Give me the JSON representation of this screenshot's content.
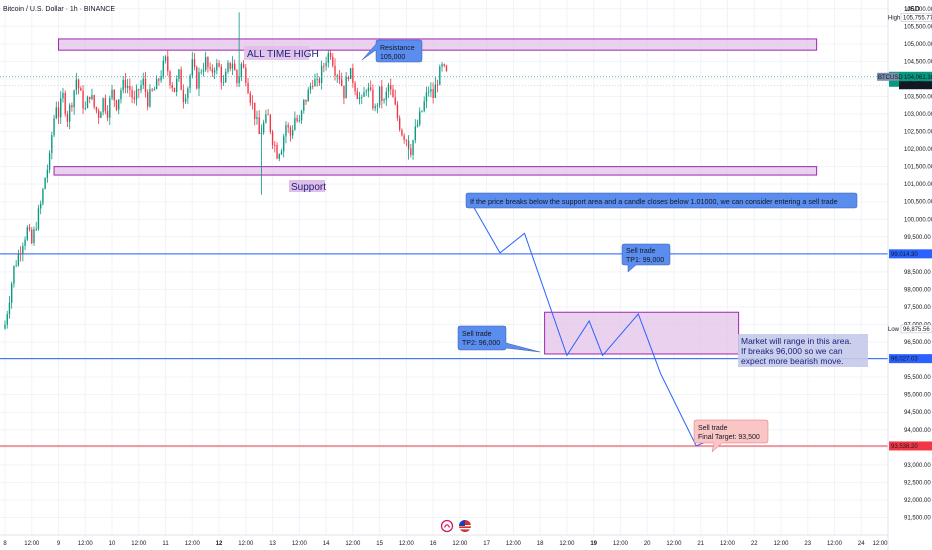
{
  "header": {
    "symbol_title": "Bitcoin / U.S. Dollar · 1h · BINANCE",
    "currency": "USD"
  },
  "chart_data": {
    "type": "candlestick",
    "title": "Bitcoin / U.S. Dollar · 1h · BINANCE",
    "ylabel": "USD",
    "ylim": [
      91000,
      106250
    ],
    "y_ticks": [
      106000,
      105500,
      105000,
      104500,
      104000,
      103500,
      103000,
      102500,
      102000,
      101500,
      101000,
      100500,
      100000,
      99500,
      99000,
      98500,
      98000,
      97500,
      97000,
      96500,
      96000,
      95500,
      95000,
      94500,
      94000,
      93500,
      93000,
      92500,
      92000,
      91500
    ],
    "y_tick_labels": [
      "106,000.00",
      "105,500.00",
      "105,000.00",
      "104,500.00",
      "104,000.00",
      "103,500.00",
      "103,000.00",
      "102,500.00",
      "102,000.00",
      "101,500.00",
      "101,000.00",
      "100,500.00",
      "100,000.00",
      "99,500.00",
      "99,000.00",
      "98,500.00",
      "98,000.00",
      "97,500.00",
      "97,000.00",
      "96,500.00",
      "96,000.00",
      "95,500.00",
      "95,000.00",
      "94,500.00",
      "94,000.00",
      "93,500.00",
      "93,000.00",
      "92,500.00",
      "92,000.00",
      "91,500.00"
    ],
    "x_ticks": [
      {
        "label": "8",
        "pos": 0
      },
      {
        "label": "12:00",
        "pos": 12
      },
      {
        "label": "9",
        "pos": 24
      },
      {
        "label": "12:00",
        "pos": 36
      },
      {
        "label": "10",
        "pos": 48
      },
      {
        "label": "12:00",
        "pos": 60
      },
      {
        "label": "11",
        "pos": 72
      },
      {
        "label": "12:00",
        "pos": 84
      },
      {
        "label": "12",
        "pos": 96,
        "bold": true
      },
      {
        "label": "12:00",
        "pos": 108
      },
      {
        "label": "13",
        "pos": 120
      },
      {
        "label": "12:00",
        "pos": 132
      },
      {
        "label": "14",
        "pos": 144
      },
      {
        "label": "12:00",
        "pos": 156
      },
      {
        "label": "15",
        "pos": 168
      },
      {
        "label": "12:00",
        "pos": 180
      },
      {
        "label": "16",
        "pos": 192
      },
      {
        "label": "12:00",
        "pos": 204
      },
      {
        "label": "17",
        "pos": 216
      },
      {
        "label": "12:00",
        "pos": 228
      },
      {
        "label": "18",
        "pos": 240
      },
      {
        "label": "12:00",
        "pos": 252
      },
      {
        "label": "19",
        "pos": 264,
        "bold": true
      },
      {
        "label": "12:00",
        "pos": 276
      },
      {
        "label": "20",
        "pos": 288
      },
      {
        "label": "12:00",
        "pos": 300
      },
      {
        "label": "21",
        "pos": 312
      },
      {
        "label": "12:00",
        "pos": 324
      },
      {
        "label": "22",
        "pos": 336
      },
      {
        "label": "12:00",
        "pos": 348
      },
      {
        "label": "23",
        "pos": 360
      },
      {
        "label": "12:00",
        "pos": 372
      },
      {
        "label": "24",
        "pos": 384
      },
      {
        "label": "12:00",
        "pos": 396
      }
    ],
    "x_range": [
      0,
      396
    ],
    "price_path": [
      [
        0,
        97000
      ],
      [
        2,
        97800
      ],
      [
        4,
        98600
      ],
      [
        6,
        99000
      ],
      [
        8,
        99400
      ],
      [
        10,
        99700
      ],
      [
        12,
        99300
      ],
      [
        14,
        99900
      ],
      [
        16,
        100400
      ],
      [
        18,
        101200
      ],
      [
        20,
        101700
      ],
      [
        21,
        102400
      ],
      [
        22,
        102900
      ],
      [
        23,
        103300
      ],
      [
        24,
        103000
      ],
      [
        26,
        103500
      ],
      [
        28,
        102900
      ],
      [
        30,
        103400
      ],
      [
        32,
        104000
      ],
      [
        34,
        103500
      ],
      [
        36,
        103100
      ],
      [
        38,
        103600
      ],
      [
        40,
        103200
      ],
      [
        42,
        103000
      ],
      [
        44,
        103400
      ],
      [
        46,
        103100
      ],
      [
        48,
        103600
      ],
      [
        50,
        103300
      ],
      [
        52,
        103700
      ],
      [
        54,
        103900
      ],
      [
        56,
        103700
      ],
      [
        58,
        103300
      ],
      [
        60,
        103700
      ],
      [
        62,
        103900
      ],
      [
        64,
        103400
      ],
      [
        66,
        103600
      ],
      [
        68,
        103800
      ],
      [
        70,
        104200
      ],
      [
        72,
        104500
      ],
      [
        74,
        104000
      ],
      [
        76,
        103700
      ],
      [
        78,
        104100
      ],
      [
        80,
        103500
      ],
      [
        82,
        103800
      ],
      [
        84,
        104400
      ],
      [
        86,
        103900
      ],
      [
        88,
        104300
      ],
      [
        90,
        104500
      ],
      [
        92,
        104100
      ],
      [
        94,
        104400
      ],
      [
        96,
        104300
      ],
      [
        98,
        103800
      ],
      [
        100,
        104300
      ],
      [
        102,
        104500
      ],
      [
        104,
        103900
      ],
      [
        106,
        104400
      ],
      [
        108,
        104100
      ],
      [
        110,
        103500
      ],
      [
        112,
        103000
      ],
      [
        114,
        102400
      ],
      [
        116,
        102700
      ],
      [
        118,
        102900
      ],
      [
        120,
        102300
      ],
      [
        122,
        101900
      ],
      [
        124,
        102100
      ],
      [
        126,
        102700
      ],
      [
        128,
        102400
      ],
      [
        130,
        102900
      ],
      [
        132,
        102700
      ],
      [
        134,
        103300
      ],
      [
        136,
        103600
      ],
      [
        138,
        104000
      ],
      [
        140,
        103800
      ],
      [
        142,
        104200
      ],
      [
        144,
        104600
      ],
      [
        146,
        104800
      ],
      [
        148,
        104300
      ],
      [
        150,
        104100
      ],
      [
        152,
        103600
      ],
      [
        154,
        104200
      ],
      [
        156,
        104000
      ],
      [
        158,
        103600
      ],
      [
        160,
        103300
      ],
      [
        162,
        103800
      ],
      [
        164,
        103500
      ],
      [
        166,
        103100
      ],
      [
        168,
        103600
      ],
      [
        170,
        103300
      ],
      [
        172,
        103800
      ],
      [
        174,
        103400
      ],
      [
        176,
        102900
      ],
      [
        178,
        102500
      ],
      [
        180,
        102300
      ],
      [
        182,
        102000
      ],
      [
        184,
        102500
      ],
      [
        186,
        102900
      ],
      [
        188,
        103300
      ],
      [
        190,
        103700
      ],
      [
        192,
        103500
      ],
      [
        194,
        104000
      ],
      [
        196,
        104300
      ],
      [
        198,
        104100
      ]
    ],
    "special_wicks": [
      {
        "pos": 105,
        "low": 103800,
        "high": 105900
      },
      {
        "pos": 115,
        "low": 100700,
        "high": 102700
      },
      {
        "pos": 181,
        "low": 101700,
        "high": 102400
      }
    ],
    "zones": [
      {
        "name": "resistance-zone",
        "x0": 24,
        "x1": 364,
        "y0": 104820,
        "y1": 105140
      },
      {
        "name": "support-zone",
        "x0": 22,
        "x1": 364,
        "y0": 101260,
        "y1": 101500
      },
      {
        "name": "range-zone",
        "x0": 242,
        "x1": 329,
        "y0": 96160,
        "y1": 97350
      }
    ],
    "horizontal_lines": [
      {
        "name": "tp1-line",
        "value": 99014.3,
        "color": "#2962ff",
        "label": "99,014.30"
      },
      {
        "name": "tp2-line",
        "value": 96027.03,
        "color": "#2962ff",
        "label": "96,027.03"
      },
      {
        "name": "final-target-line",
        "value": 93538.2,
        "color": "#f23645",
        "label": "93,538.20"
      }
    ],
    "projection_path": [
      [
        207,
        100700
      ],
      [
        222,
        99040
      ],
      [
        233,
        99600
      ],
      [
        252,
        96120
      ],
      [
        262,
        97100
      ],
      [
        268,
        96120
      ],
      [
        284,
        97300
      ],
      [
        294,
        95600
      ],
      [
        310,
        93540
      ],
      [
        320,
        93800
      ]
    ],
    "last_price": {
      "value": 104061.38,
      "label": "104,061.38",
      "countdown": "42:47",
      "tag": "BTCUSD"
    },
    "prev_close": {
      "value": 103820.17,
      "label": "103,820.17"
    },
    "high": {
      "value": 105755.77,
      "label": "105,755.77",
      "tag": "High"
    },
    "low": {
      "value": 96875.56,
      "label": "96,875.56",
      "tag": "Low"
    },
    "annotations": {
      "all_time_high": "ALL TIME HIGH",
      "resistance": [
        "Resistance",
        "105,000"
      ],
      "support": "Support",
      "breakdown_note": "If the price breaks below the support area and a candle closes below 1.01000, we can consider entering a sell trade",
      "sell_trade_1": [
        "Sell trade",
        "TP1: 99,000"
      ],
      "sell_trade_2": [
        "Sell trade",
        "TP2: 96,000"
      ],
      "range_note": [
        "Market will range in this area.",
        "If breaks 96,000 so we can",
        "expect more bearish move."
      ],
      "final_target": [
        "Sell trade",
        "Final Target: 93,500"
      ]
    }
  },
  "colors": {
    "up": "#089981",
    "down": "#f23645",
    "zone_fill": "#e1bee7",
    "zone_stroke": "#9c27b0",
    "callout_blue": "#5b8def",
    "callout_pink": "#f9c5c5",
    "note_fill": "#c5cae9",
    "projection": "#2962ff",
    "axis_text": "#131722"
  }
}
